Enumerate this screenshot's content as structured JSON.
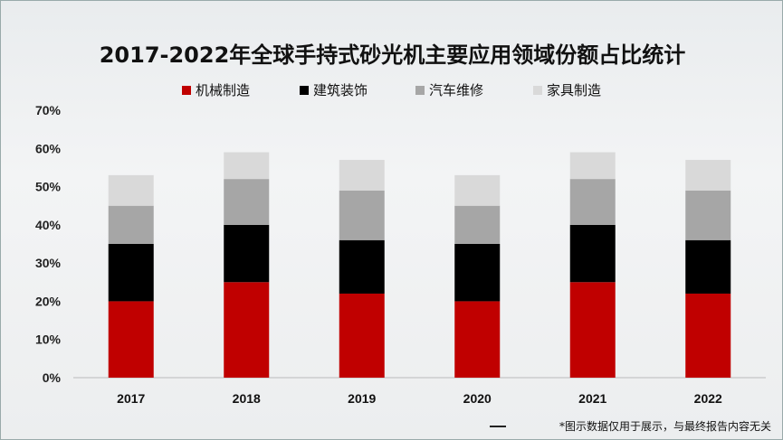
{
  "chart_data": {
    "type": "bar",
    "stacked": true,
    "title": "2017-2022年全球手持式砂光机主要应用领域份额占比统计",
    "categories": [
      "2017",
      "2018",
      "2019",
      "2020",
      "2021",
      "2022"
    ],
    "series": [
      {
        "name": "机械制造",
        "color": "#c00000",
        "values": [
          20,
          25,
          22,
          20,
          25,
          22
        ]
      },
      {
        "name": "建筑装饰",
        "color": "#000000",
        "values": [
          15,
          15,
          14,
          15,
          15,
          14
        ]
      },
      {
        "name": "汽车维修",
        "color": "#a6a6a6",
        "values": [
          10,
          12,
          13,
          10,
          12,
          13
        ]
      },
      {
        "name": "家具制造",
        "color": "#d9d9d9",
        "values": [
          8,
          7,
          8,
          8,
          7,
          8
        ]
      }
    ],
    "ylim": [
      0,
      70
    ],
    "yticks": [
      "0%",
      "10%",
      "20%",
      "30%",
      "40%",
      "50%",
      "60%",
      "70%"
    ],
    "legend": "top",
    "xlabel": "",
    "ylabel": ""
  },
  "footnote": "*图示数据仅用于展示，与最终报告内容无关"
}
